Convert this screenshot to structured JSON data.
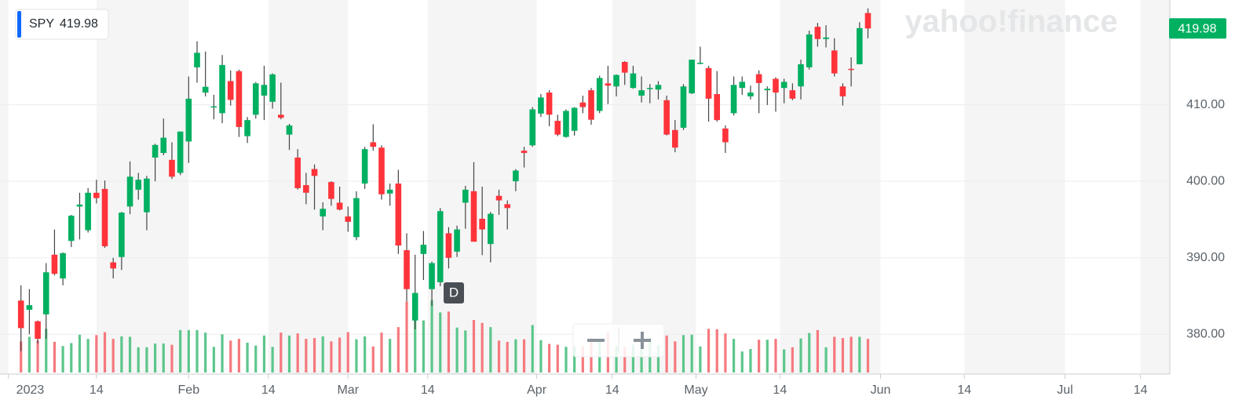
{
  "chart_data": {
    "type": "candlestick",
    "symbol": "SPY",
    "last_price": 419.98,
    "watermark": "yahoo!finance",
    "interval_badge": "D",
    "up_color": "#00b061",
    "down_color": "#ff333a",
    "volume_up_color": "#5cc68b",
    "volume_down_color": "#f5797e",
    "ylim": [
      375,
      423.7
    ],
    "yticks": [
      {
        "value": 380,
        "label": "380.00"
      },
      {
        "value": 390,
        "label": "390.00"
      },
      {
        "value": 400,
        "label": "400.00"
      },
      {
        "value": 410,
        "label": "410.00"
      }
    ],
    "xlim": [
      -2.5,
      137
    ],
    "xticks": [
      {
        "value": -1.5,
        "label": "2023"
      },
      {
        "value": 9,
        "label": "14"
      },
      {
        "value": 20,
        "label": "Feb"
      },
      {
        "value": 29.5,
        "label": "14"
      },
      {
        "value": 39,
        "label": "Mar"
      },
      {
        "value": 48.5,
        "label": "14"
      },
      {
        "value": 61.5,
        "label": "Apr"
      },
      {
        "value": 70.5,
        "label": "14"
      },
      {
        "value": 80.5,
        "label": "May"
      },
      {
        "value": 90.5,
        "label": "14"
      },
      {
        "value": 102.5,
        "label": "Jun"
      },
      {
        "value": 112.5,
        "label": "14"
      },
      {
        "value": 124.5,
        "label": "Jul"
      },
      {
        "value": 133.5,
        "label": "14"
      }
    ],
    "grid": true,
    "volume_lim": [
      0,
      280
    ],
    "ohlc": [
      [
        384.4,
        386.4,
        377.8,
        380.8
      ],
      [
        383.2,
        385.9,
        380.0,
        383.8
      ],
      [
        381.7,
        381.8,
        378.8,
        379.4
      ],
      [
        382.6,
        389.3,
        379.4,
        388.1
      ],
      [
        390.4,
        393.7,
        387.7,
        387.9
      ],
      [
        387.3,
        390.7,
        386.4,
        390.6
      ],
      [
        392.2,
        395.6,
        391.4,
        395.5
      ],
      [
        396.7,
        398.5,
        392.4,
        396.96
      ],
      [
        393.6,
        399.1,
        393.3,
        398.5
      ],
      [
        398.5,
        400.2,
        397.1,
        397.8
      ],
      [
        399.0,
        400.1,
        391.3,
        391.5
      ],
      [
        389.4,
        390.0,
        387.3,
        388.6
      ],
      [
        390.1,
        396.0,
        388.4,
        395.9
      ],
      [
        396.7,
        402.6,
        395.7,
        400.6
      ],
      [
        398.9,
        401.1,
        397.6,
        400.2
      ],
      [
        395.95,
        400.7,
        393.6,
        400.35
      ],
      [
        403.1,
        404.9,
        400.0,
        404.75
      ],
      [
        403.7,
        408.2,
        403.4,
        405.7
      ],
      [
        402.8,
        405.1,
        400.3,
        400.6
      ],
      [
        401.1,
        406.5,
        400.8,
        406.5
      ],
      [
        405.2,
        413.7,
        402.4,
        410.8
      ],
      [
        414.9,
        418.3,
        412.9,
        416.8
      ],
      [
        411.6,
        416.97,
        411.1,
        412.35
      ],
      [
        409.8,
        411.3,
        408.1,
        409.8
      ],
      [
        408.9,
        416.5,
        407.6,
        415.2
      ],
      [
        413.1,
        414.5,
        409.9,
        410.65
      ],
      [
        414.4,
        414.6,
        405.8,
        407.1
      ],
      [
        405.9,
        408.4,
        405.0,
        408.0
      ],
      [
        408.7,
        412.97,
        408.2,
        412.8
      ],
      [
        411.2,
        415.1,
        408.0,
        412.6
      ],
      [
        410.4,
        414.1,
        409.5,
        413.98
      ],
      [
        408.7,
        412.9,
        408.1,
        408.3
      ],
      [
        406.1,
        407.5,
        404.1,
        407.3
      ],
      [
        403.1,
        404.2,
        398.9,
        399.1
      ],
      [
        399.5,
        401.1,
        397.0,
        398.5
      ],
      [
        401.6,
        402.2,
        396.3,
        400.7
      ],
      [
        395.4,
        397.25,
        393.6,
        396.4
      ],
      [
        399.9,
        400.0,
        396.8,
        397.7
      ],
      [
        397.2,
        399.3,
        396.2,
        396.3
      ],
      [
        395.4,
        396.7,
        393.4,
        394.7
      ],
      [
        392.7,
        398.7,
        392.3,
        397.8
      ],
      [
        399.7,
        404.5,
        399.0,
        404.2
      ],
      [
        405.1,
        407.45,
        404.0,
        404.5
      ],
      [
        404.4,
        404.7,
        397.6,
        398.3
      ],
      [
        398.4,
        399.7,
        396.8,
        398.9
      ],
      [
        399.7,
        401.5,
        390.5,
        391.6
      ],
      [
        390.99,
        393.2,
        384.3,
        385.9
      ],
      [
        381.8,
        390.4,
        380.65,
        385.4
      ],
      [
        390.5,
        393.5,
        387.1,
        391.7
      ],
      [
        385.9,
        389.5,
        383.7,
        389.3
      ],
      [
        386.8,
        396.5,
        386.3,
        396.1
      ],
      [
        393.2,
        394.0,
        388.6,
        389.99
      ],
      [
        390.8,
        394.2,
        390.1,
        393.7
      ],
      [
        397.2,
        399.4,
        393.8,
        398.9
      ],
      [
        398.7,
        402.5,
        392.1,
        392.1
      ],
      [
        395.1,
        399.3,
        390.35,
        393.7
      ],
      [
        391.8,
        396.0,
        389.4,
        395.75
      ],
      [
        398.1,
        398.9,
        395.6,
        397.5
      ],
      [
        397.0,
        397.5,
        393.7,
        396.5
      ],
      [
        400.0,
        401.6,
        398.7,
        401.4
      ],
      [
        404.0,
        404.5,
        401.8,
        403.7
      ],
      [
        404.7,
        409.7,
        404.5,
        409.4
      ],
      [
        408.85,
        411.4,
        408.4,
        410.95
      ],
      [
        411.6,
        411.9,
        407.2,
        408.7
      ],
      [
        407.9,
        408.7,
        405.9,
        406.1
      ],
      [
        405.8,
        409.4,
        405.7,
        409.2
      ],
      [
        406.6,
        409.7,
        405.97,
        409.6
      ],
      [
        410.3,
        411.2,
        408.9,
        409.7
      ],
      [
        411.9,
        412.2,
        407.4,
        408.05
      ],
      [
        409.2,
        413.8,
        408.9,
        413.5
      ],
      [
        412.8,
        415.1,
        410.1,
        412.5
      ],
      [
        412.4,
        413.96,
        411.1,
        413.9
      ],
      [
        415.6,
        415.7,
        412.6,
        414.2
      ],
      [
        412.2,
        415.1,
        412.1,
        414.1
      ],
      [
        411.2,
        413.7,
        410.3,
        411.9
      ],
      [
        412.2,
        412.7,
        410.2,
        412.2
      ],
      [
        411.99,
        413.1,
        410.7,
        412.6
      ],
      [
        410.6,
        411.2,
        406.0,
        406.1
      ],
      [
        406.7,
        408.0,
        403.8,
        404.4
      ],
      [
        407.0,
        412.7,
        406.7,
        412.4
      ],
      [
        411.5,
        415.9,
        411.4,
        415.9
      ],
      [
        415.5,
        417.6,
        415.3,
        415.5
      ],
      [
        414.8,
        415.1,
        407.8,
        410.8
      ],
      [
        411.4,
        414.4,
        407.8,
        408.0
      ],
      [
        406.9,
        407.3,
        403.7,
        405.1
      ],
      [
        408.9,
        413.7,
        408.6,
        412.6
      ],
      [
        412.2,
        413.7,
        411.3,
        413.0
      ],
      [
        411.1,
        412.5,
        410.7,
        411.6
      ],
      [
        414.0,
        414.5,
        408.9,
        412.85
      ],
      [
        411.9,
        412.4,
        409.97,
        412.1
      ],
      [
        413.4,
        413.6,
        409.1,
        411.6
      ],
      [
        412.2,
        413.4,
        410.2,
        413.0
      ],
      [
        411.9,
        412.8,
        410.6,
        410.8
      ],
      [
        412.4,
        415.9,
        410.7,
        415.3
      ],
      [
        414.9,
        419.7,
        414.6,
        419.2
      ],
      [
        420.2,
        420.7,
        417.6,
        418.6
      ],
      [
        418.6,
        420.4,
        417.5,
        418.8
      ],
      [
        417.1,
        418.7,
        413.7,
        414.1
      ],
      [
        412.4,
        412.8,
        409.9,
        411.1
      ],
      [
        414.7,
        416.2,
        412.4,
        414.65
      ],
      [
        415.3,
        420.8,
        415.3,
        420.02
      ],
      [
        422.0,
        422.6,
        418.7,
        419.98
      ]
    ],
    "volume": [
      74,
      85,
      76,
      104,
      73,
      63,
      70,
      90,
      80,
      89,
      96,
      80,
      86,
      85,
      60,
      60,
      69,
      69,
      66,
      101,
      101,
      101,
      95,
      61,
      91,
      76,
      80,
      71,
      64,
      88,
      61,
      95,
      88,
      93,
      80,
      82,
      86,
      74,
      83,
      96,
      79,
      86,
      62,
      95,
      80,
      108,
      169,
      157,
      124,
      172,
      143,
      145,
      107,
      100,
      125,
      118,
      108,
      76,
      73,
      79,
      79,
      113,
      77,
      68,
      66,
      61,
      63,
      63,
      83,
      72,
      95,
      63,
      60,
      66,
      74,
      83,
      65,
      88,
      74,
      89,
      90,
      62,
      104,
      103,
      93,
      80,
      50,
      56,
      78,
      78,
      80,
      55,
      60,
      81,
      94,
      101,
      60,
      85,
      82,
      85,
      85,
      80
    ]
  }
}
